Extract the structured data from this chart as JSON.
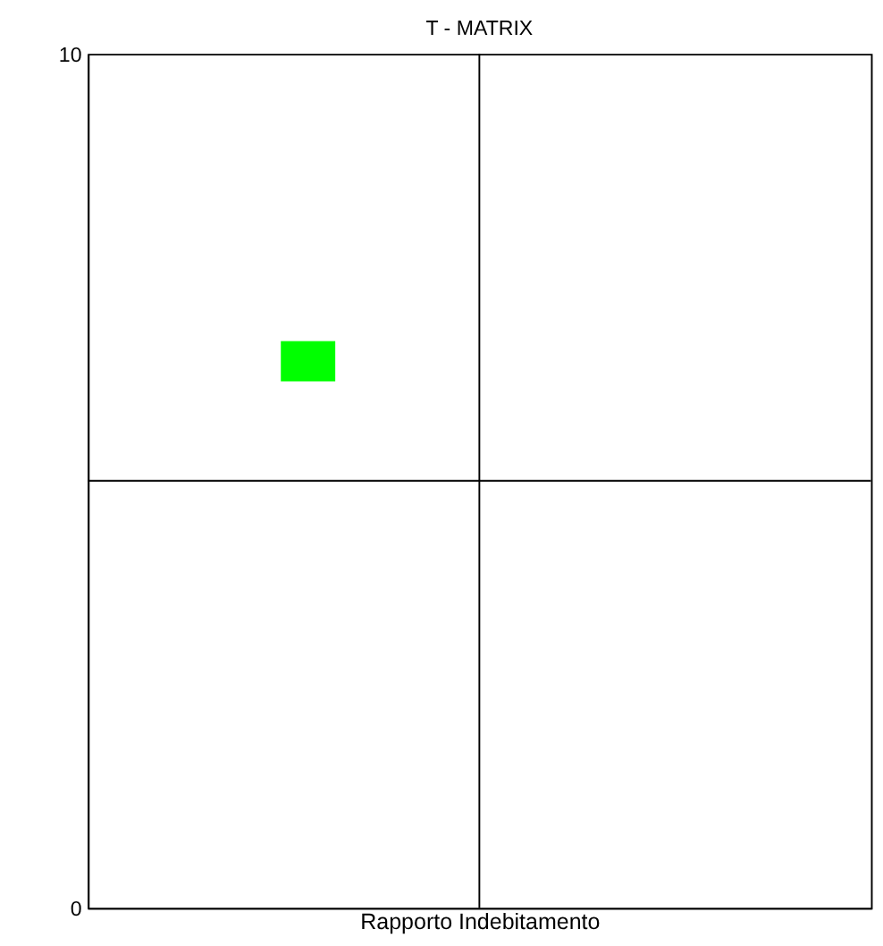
{
  "chart_data": {
    "type": "scatter",
    "title": "T - MATRIX",
    "xlabel": "Rapporto Indebitamento",
    "categories": [
      null,
      null,
      null,
      null,
      null,
      null,
      null,
      null,
      null,
      null,
      null,
      null,
      null,
      null,
      null,
      null
    ],
    "series": [
      {
        "color": "#00ff00",
        "values": [
          null,
          null,
          null,
          null,
          6.4,
          null,
          null,
          null,
          null,
          null,
          null,
          null,
          null,
          null,
          null,
          null
        ]
      }
    ],
    "ylim": [
      0,
      10
    ],
    "yticks": [
      0,
      10
    ],
    "grid": false,
    "marker": "square",
    "ref_lines": [
      {
        "axis": "y",
        "value": 5,
        "color": "#000000"
      }
    ]
  }
}
